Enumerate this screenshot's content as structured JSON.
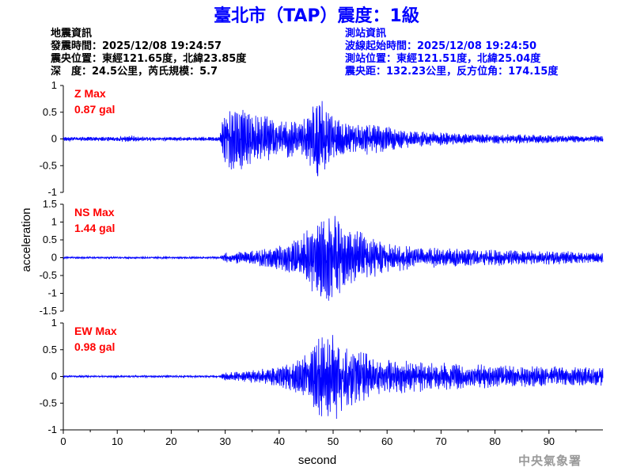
{
  "title": "臺北市（TAP）震度：1級",
  "earthquake_info": {
    "heading": "地震資訊",
    "origin_time": "發震時間：2025/12/08 19:24:57",
    "epicenter": "震央位置：東經121.65度，北緯23.85度",
    "depth_magnitude": "深　度：24.5公里，芮氏規模：5.7"
  },
  "station_info": {
    "heading": "測站資訊",
    "wave_start": "波線起始時間：2025/12/08 19:24:50",
    "station_location": "測站位置：東經121.51度，北緯25.04度",
    "distance_azimuth": "震央距：132.23公里，反方位角：174.15度"
  },
  "credit": "中央氣象署",
  "colors": {
    "trace": "#0000ff",
    "max_label": "#ff0000",
    "title": "#0000ff",
    "credit": "#9a9a9a"
  },
  "chart_data": {
    "type": "line",
    "xlabel": "second",
    "ylabel": "acceleration",
    "xlim": [
      0,
      100
    ],
    "x_ticks": [
      0,
      10,
      20,
      30,
      40,
      50,
      60,
      70,
      80,
      90
    ],
    "panels": [
      {
        "id": "z",
        "max_label": "Z Max",
        "max_value": "0.87 gal",
        "ylim": [
          -1,
          1
        ],
        "y_ticks": [
          1,
          0.5,
          0,
          -0.5,
          -1
        ],
        "y_tick_labels": [
          "1",
          "0.5",
          "0",
          "-0.5",
          "-1"
        ],
        "envelope": [
          [
            0,
            0.04
          ],
          [
            10,
            0.04
          ],
          [
            12.5,
            0.07
          ],
          [
            14,
            0.04
          ],
          [
            29,
            0.04
          ],
          [
            29.5,
            0.45
          ],
          [
            31,
            0.65
          ],
          [
            35,
            0.5
          ],
          [
            40,
            0.4
          ],
          [
            44,
            0.35
          ],
          [
            45.5,
            0.45
          ],
          [
            46.5,
            0.8
          ],
          [
            47.5,
            0.85
          ],
          [
            49,
            0.5
          ],
          [
            52,
            0.35
          ],
          [
            60,
            0.25
          ],
          [
            65,
            0.15
          ],
          [
            75,
            0.1
          ],
          [
            90,
            0.08
          ],
          [
            100,
            0.06
          ]
        ]
      },
      {
        "id": "ns",
        "max_label": "NS Max",
        "max_value": "1.44 gal",
        "ylim": [
          -1.5,
          1.5
        ],
        "y_ticks": [
          1.5,
          1,
          0.5,
          0,
          -0.5,
          -1,
          -1.5
        ],
        "y_tick_labels": [
          "1.5",
          "1",
          "0.5",
          "0",
          "-0.5",
          "-1",
          "-1.5"
        ],
        "envelope": [
          [
            0,
            0.03
          ],
          [
            29,
            0.03
          ],
          [
            30,
            0.15
          ],
          [
            35,
            0.2
          ],
          [
            40,
            0.35
          ],
          [
            44,
            0.6
          ],
          [
            46,
            1.0
          ],
          [
            48,
            1.2
          ],
          [
            50.5,
            1.4
          ],
          [
            52,
            0.9
          ],
          [
            56,
            0.7
          ],
          [
            60,
            0.45
          ],
          [
            65,
            0.3
          ],
          [
            75,
            0.25
          ],
          [
            90,
            0.2
          ],
          [
            100,
            0.15
          ]
        ]
      },
      {
        "id": "ew",
        "max_label": "EW Max",
        "max_value": "0.98 gal",
        "ylim": [
          -1,
          1
        ],
        "y_ticks": [
          1,
          0.5,
          0,
          -0.5,
          -1
        ],
        "y_tick_labels": [
          "1",
          "0.5",
          "0",
          "-0.5",
          "-1"
        ],
        "envelope": [
          [
            0,
            0.02
          ],
          [
            29,
            0.02
          ],
          [
            30,
            0.08
          ],
          [
            35,
            0.12
          ],
          [
            40,
            0.2
          ],
          [
            44,
            0.35
          ],
          [
            46,
            0.6
          ],
          [
            48,
            0.8
          ],
          [
            50.5,
            0.95
          ],
          [
            52,
            0.6
          ],
          [
            56,
            0.45
          ],
          [
            60,
            0.35
          ],
          [
            65,
            0.3
          ],
          [
            72,
            0.25
          ],
          [
            85,
            0.2
          ],
          [
            100,
            0.18
          ]
        ]
      }
    ]
  }
}
